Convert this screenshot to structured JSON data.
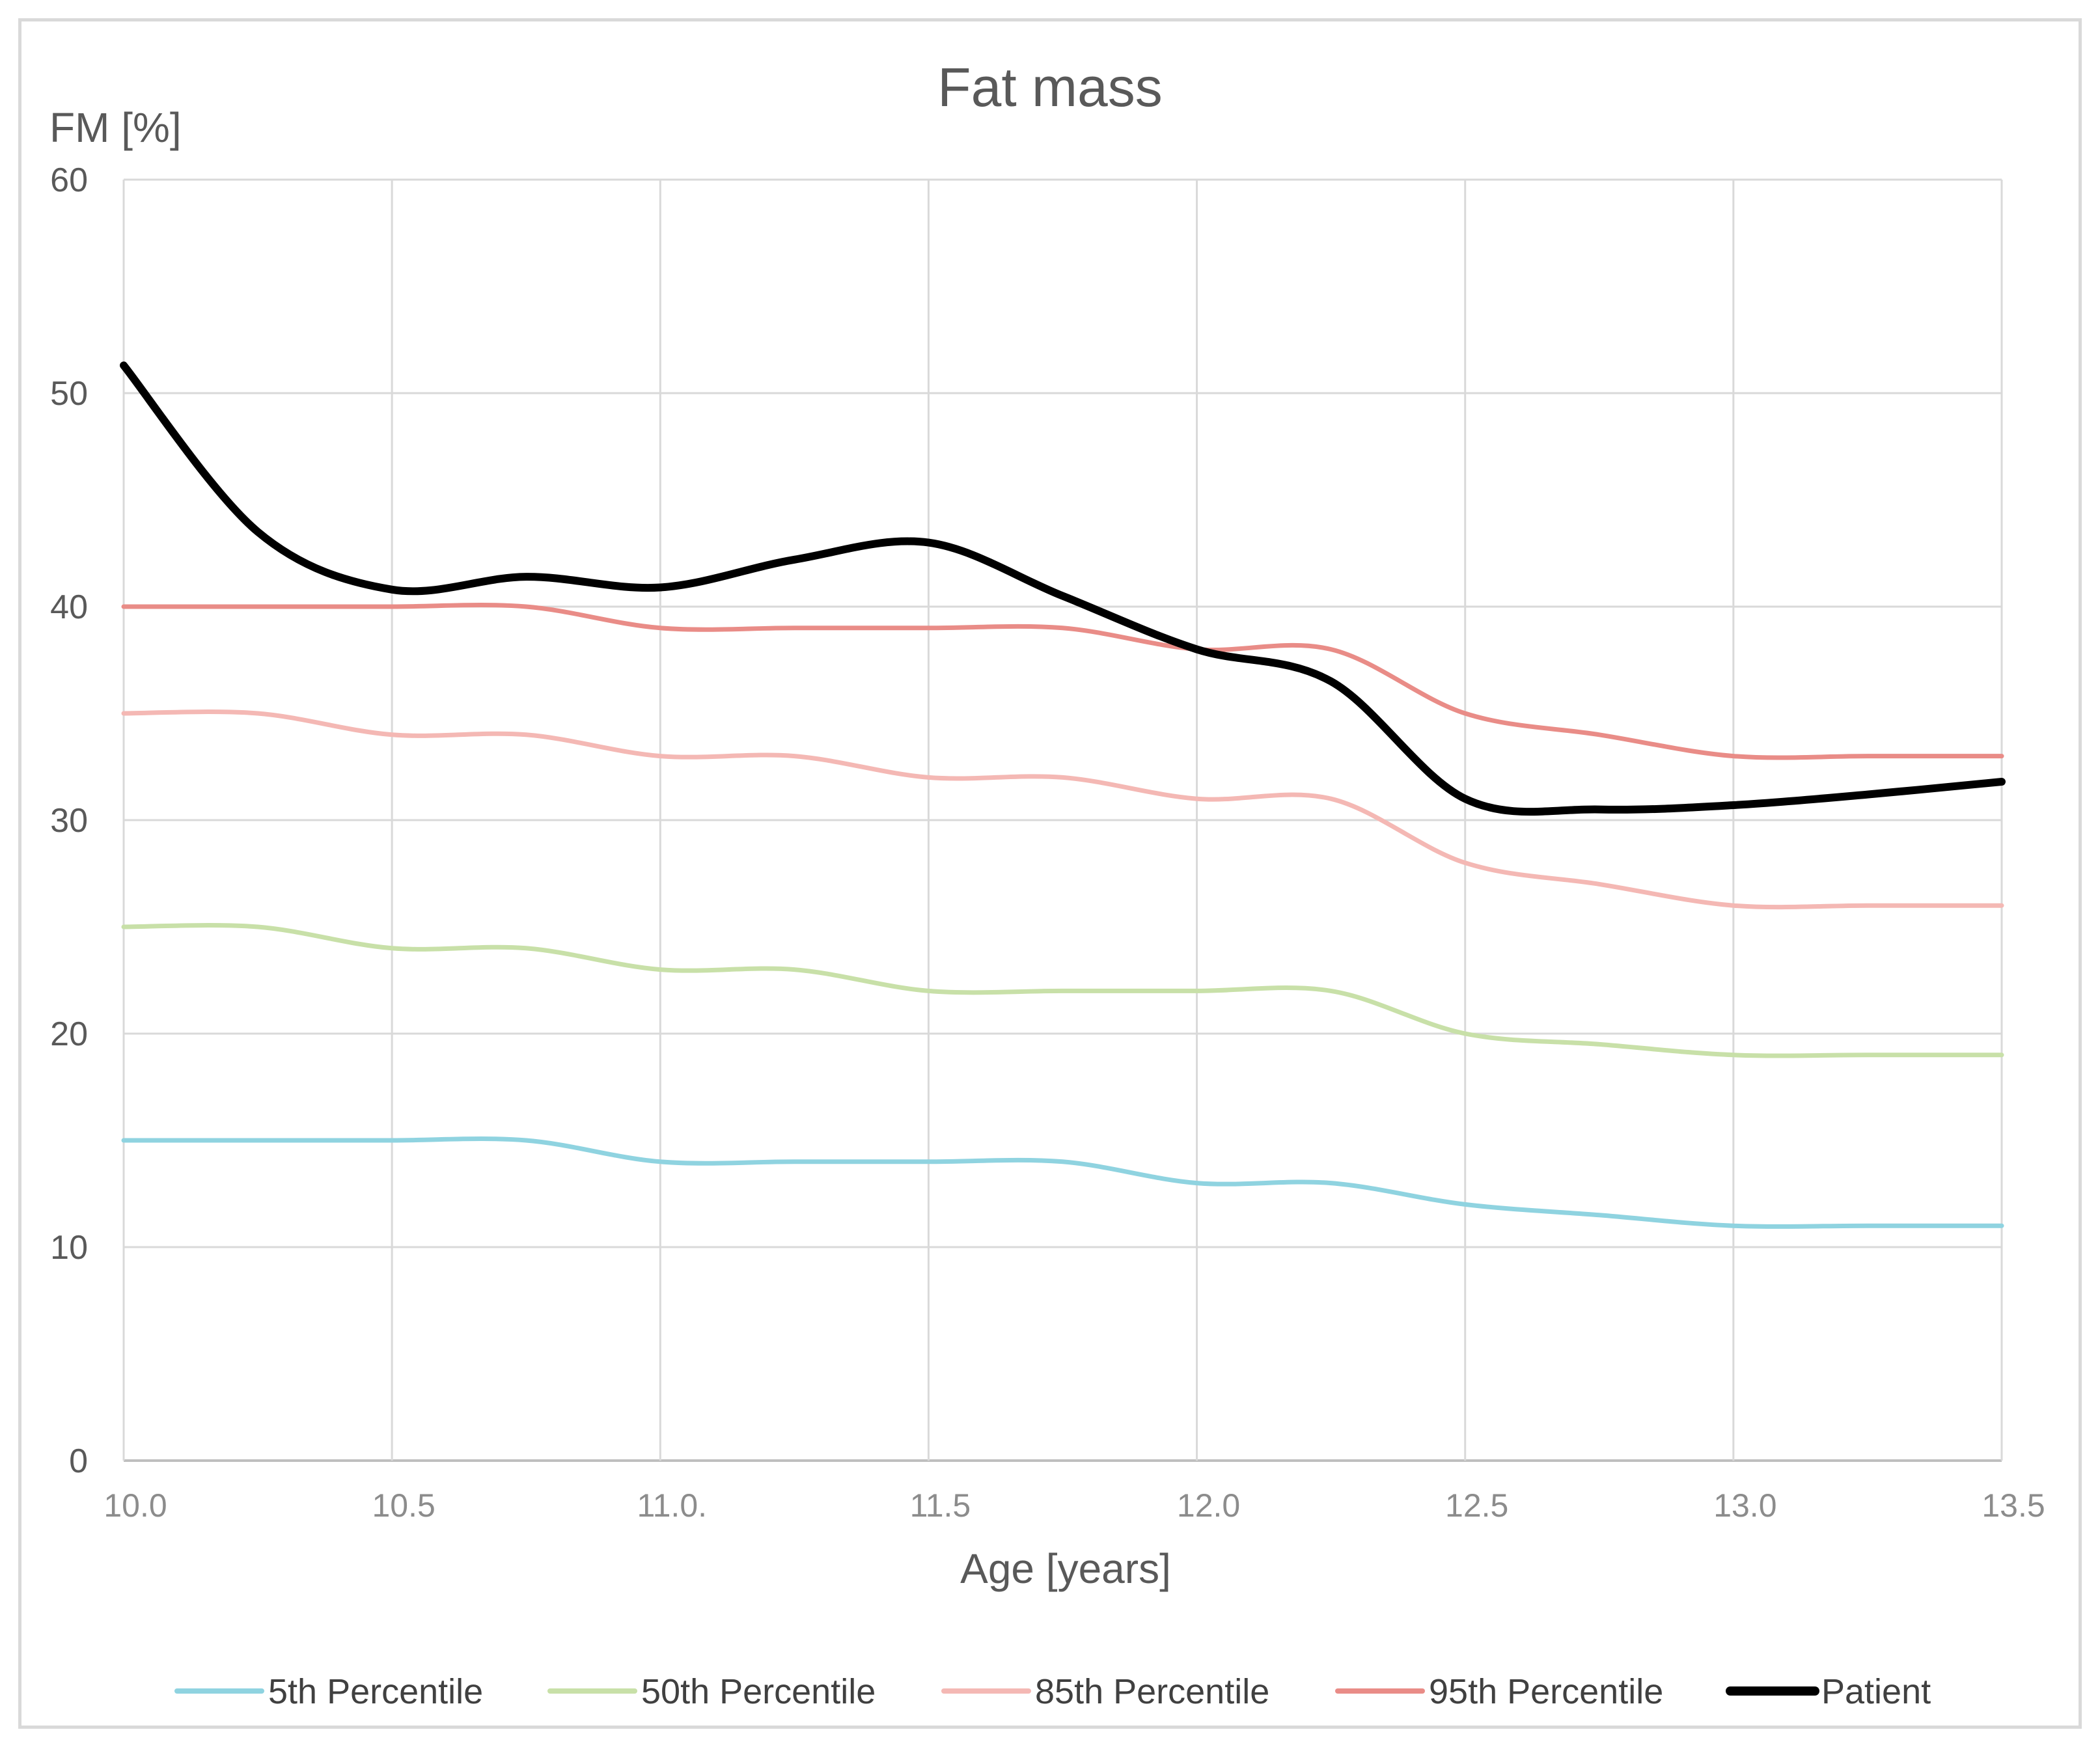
{
  "chart_data": {
    "type": "line",
    "title": "Fat mass",
    "ylabel": "FM [%]",
    "xlabel": "Age [years]",
    "xlim": [
      10.0,
      13.5
    ],
    "ylim": [
      0,
      60
    ],
    "grid": true,
    "legend_position": "bottom",
    "x_ticks": [
      10.0,
      10.5,
      11.0,
      11.5,
      12.0,
      12.5,
      13.0,
      13.5
    ],
    "x_tick_labels": [
      "10.0",
      "10.5",
      "11.0.",
      "11.5",
      "12.0",
      "12.5",
      "13.0",
      "13.5"
    ],
    "y_ticks": [
      0,
      10,
      20,
      30,
      40,
      50,
      60
    ],
    "y_tick_labels": [
      "0",
      "10",
      "20",
      "30",
      "40",
      "50",
      "60"
    ],
    "x": [
      10.0,
      10.25,
      10.5,
      10.75,
      11.0,
      11.25,
      11.5,
      11.75,
      12.0,
      12.25,
      12.5,
      12.75,
      13.0,
      13.25,
      13.5
    ],
    "series": [
      {
        "name": "5th Percentile",
        "color": "#8fd3e0",
        "width": 7,
        "values": [
          15,
          15,
          15,
          15,
          14,
          14,
          14,
          14,
          13,
          13,
          12,
          11.5,
          11,
          11,
          11
        ]
      },
      {
        "name": "50th Percentile",
        "color": "#c8e0a8",
        "width": 7,
        "values": [
          25,
          25,
          24,
          24,
          23,
          23,
          22,
          22,
          22,
          22,
          20,
          19.5,
          19,
          19,
          19
        ]
      },
      {
        "name": "85th Percentile",
        "color": "#f4b8b4",
        "width": 7,
        "values": [
          35,
          35,
          34,
          34,
          33,
          33,
          32,
          32,
          31,
          31,
          28,
          27,
          26,
          26,
          26
        ]
      },
      {
        "name": "95th Percentile",
        "color": "#e98c87",
        "width": 7,
        "values": [
          40,
          40,
          40,
          40,
          39,
          39,
          39,
          39,
          38,
          38,
          35,
          34,
          33,
          33,
          33
        ]
      },
      {
        "name": "Patient",
        "color": "#000000",
        "width": 12,
        "values": [
          51.3,
          43.5,
          40.8,
          41.4,
          40.9,
          42.2,
          43.0,
          40.5,
          38.0,
          36.5,
          31.0,
          30.5,
          30.7,
          31.2,
          31.8
        ]
      }
    ]
  }
}
